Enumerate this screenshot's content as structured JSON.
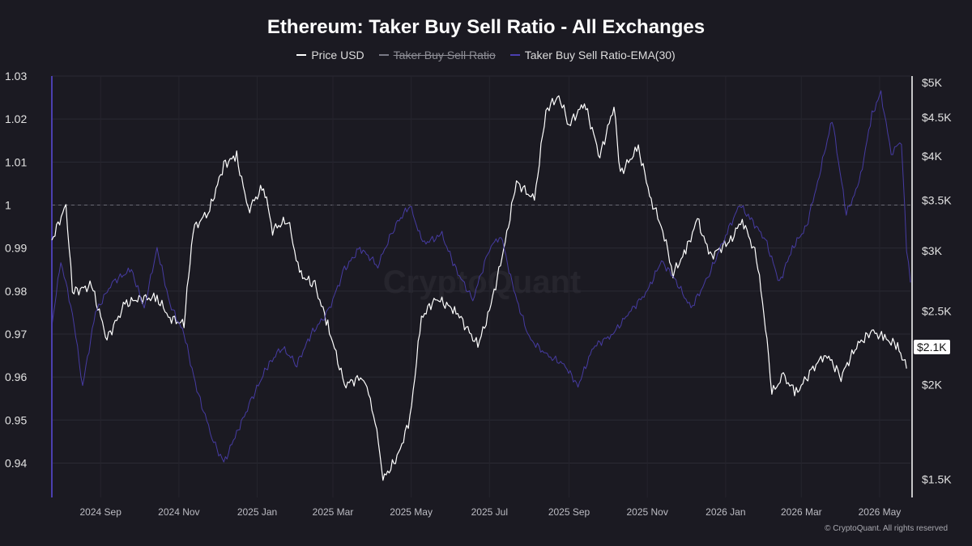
{
  "chart_data": {
    "type": "line",
    "title": "Ethereum: Taker Buy Sell Ratio - All Exchanges",
    "watermark": "CryptoQuant",
    "copyright": "© CryptoQuant. All rights reserved",
    "legend": [
      {
        "label": "Price USD",
        "color": "#ffffff",
        "hidden": false
      },
      {
        "label": "Taker Buy Sell Ratio",
        "color": "#7a7a86",
        "hidden": true
      },
      {
        "label": "Taker Buy Sell Ratio-EMA(30)",
        "color": "#4b3fb0",
        "hidden": false
      }
    ],
    "x_ticks": [
      "2024 Sep",
      "2024 Nov",
      "2025 Jan",
      "2025 Mar",
      "2025 May",
      "2025 Jul",
      "2025 Sep",
      "2025 Nov",
      "2026 Jan",
      "2026 Mar",
      "2026 May"
    ],
    "x_range": [
      "2024-07-25",
      "2026-05-25"
    ],
    "left_axis": {
      "ticks": [
        "1.03",
        "1.02",
        "1.01",
        "1",
        "0.99",
        "0.98",
        "0.97",
        "0.96",
        "0.95",
        "0.94"
      ],
      "ylim": [
        0.932,
        1.03
      ],
      "reference_line": 1.0
    },
    "right_axis": {
      "scale": "log",
      "ticks": [
        {
          "label": "$5K",
          "value": 5000
        },
        {
          "label": "$4.5K",
          "value": 4500
        },
        {
          "label": "$4K",
          "value": 4000
        },
        {
          "label": "$3.5K",
          "value": 3500
        },
        {
          "label": "$3K",
          "value": 3000
        },
        {
          "label": "$2.5K",
          "value": 2500
        },
        {
          "label": "$2K",
          "value": 2000
        },
        {
          "label": "$1.5K",
          "value": 1500
        }
      ],
      "ylim": [
        1420,
        5100
      ],
      "current_price_label": "$2.1K"
    },
    "series": [
      {
        "name": "Price USD",
        "axis": "right",
        "color": "#ffffff",
        "points": [
          [
            "2024-07-25",
            3100
          ],
          [
            "2024-08-05",
            3450
          ],
          [
            "2024-08-10",
            2650
          ],
          [
            "2024-08-25",
            2700
          ],
          [
            "2024-09-06",
            2300
          ],
          [
            "2024-09-20",
            2550
          ],
          [
            "2024-10-01",
            2600
          ],
          [
            "2024-10-15",
            2600
          ],
          [
            "2024-10-25",
            2450
          ],
          [
            "2024-11-05",
            2400
          ],
          [
            "2024-11-12",
            3200
          ],
          [
            "2024-11-25",
            3400
          ],
          [
            "2024-12-06",
            3900
          ],
          [
            "2024-12-16",
            4000
          ],
          [
            "2024-12-25",
            3400
          ],
          [
            "2025-01-06",
            3650
          ],
          [
            "2025-01-13",
            3200
          ],
          [
            "2025-01-25",
            3300
          ],
          [
            "2025-02-03",
            2800
          ],
          [
            "2025-02-15",
            2700
          ],
          [
            "2025-02-25",
            2400
          ],
          [
            "2025-03-10",
            2000
          ],
          [
            "2025-03-25",
            2050
          ],
          [
            "2025-04-03",
            1800
          ],
          [
            "2025-04-09",
            1500
          ],
          [
            "2025-04-20",
            1600
          ],
          [
            "2025-04-30",
            1800
          ],
          [
            "2025-05-09",
            2450
          ],
          [
            "2025-05-20",
            2600
          ],
          [
            "2025-06-05",
            2500
          ],
          [
            "2025-06-22",
            2250
          ],
          [
            "2025-07-01",
            2500
          ],
          [
            "2025-07-12",
            3000
          ],
          [
            "2025-07-22",
            3700
          ],
          [
            "2025-08-05",
            3500
          ],
          [
            "2025-08-14",
            4600
          ],
          [
            "2025-08-24",
            4800
          ],
          [
            "2025-09-01",
            4400
          ],
          [
            "2025-09-13",
            4700
          ],
          [
            "2025-09-25",
            4000
          ],
          [
            "2025-10-06",
            4650
          ],
          [
            "2025-10-11",
            3800
          ],
          [
            "2025-10-25",
            4100
          ],
          [
            "2025-11-04",
            3500
          ],
          [
            "2025-11-13",
            3200
          ],
          [
            "2025-11-21",
            2800
          ],
          [
            "2025-12-01",
            3000
          ],
          [
            "2025-12-10",
            3300
          ],
          [
            "2025-12-20",
            2950
          ],
          [
            "2026-01-05",
            3100
          ],
          [
            "2026-01-14",
            3300
          ],
          [
            "2026-01-25",
            2950
          ],
          [
            "2026-02-01",
            2400
          ],
          [
            "2026-02-06",
            1950
          ],
          [
            "2026-02-15",
            2050
          ],
          [
            "2026-02-25",
            1950
          ],
          [
            "2026-03-10",
            2100
          ],
          [
            "2026-03-20",
            2200
          ],
          [
            "2026-04-01",
            2050
          ],
          [
            "2026-04-13",
            2250
          ],
          [
            "2026-04-25",
            2350
          ],
          [
            "2026-05-05",
            2300
          ],
          [
            "2026-05-15",
            2250
          ],
          [
            "2026-05-22",
            2100
          ]
        ]
      },
      {
        "name": "Taker Buy Sell Ratio-EMA(30)",
        "axis": "left",
        "color": "#4b3fb0",
        "points": [
          [
            "2024-07-25",
            0.972
          ],
          [
            "2024-08-01",
            0.987
          ],
          [
            "2024-08-10",
            0.975
          ],
          [
            "2024-08-18",
            0.958
          ],
          [
            "2024-08-28",
            0.975
          ],
          [
            "2024-09-10",
            0.982
          ],
          [
            "2024-09-25",
            0.985
          ],
          [
            "2024-10-05",
            0.976
          ],
          [
            "2024-10-15",
            0.99
          ],
          [
            "2024-10-25",
            0.977
          ],
          [
            "2024-11-05",
            0.97
          ],
          [
            "2024-11-15",
            0.957
          ],
          [
            "2024-11-28",
            0.945
          ],
          [
            "2024-12-06",
            0.94
          ],
          [
            "2024-12-16",
            0.947
          ],
          [
            "2024-12-28",
            0.955
          ],
          [
            "2025-01-08",
            0.962
          ],
          [
            "2025-01-20",
            0.967
          ],
          [
            "2025-02-01",
            0.963
          ],
          [
            "2025-02-12",
            0.97
          ],
          [
            "2025-02-25",
            0.975
          ],
          [
            "2025-03-10",
            0.985
          ],
          [
            "2025-03-22",
            0.99
          ],
          [
            "2025-04-05",
            0.986
          ],
          [
            "2025-04-18",
            0.995
          ],
          [
            "2025-04-30",
            1.0
          ],
          [
            "2025-05-10",
            0.991
          ],
          [
            "2025-05-25",
            0.993
          ],
          [
            "2025-06-05",
            0.985
          ],
          [
            "2025-06-18",
            0.978
          ],
          [
            "2025-07-01",
            0.99
          ],
          [
            "2025-07-10",
            0.993
          ],
          [
            "2025-07-20",
            0.98
          ],
          [
            "2025-08-01",
            0.969
          ],
          [
            "2025-08-15",
            0.965
          ],
          [
            "2025-08-28",
            0.963
          ],
          [
            "2025-09-08",
            0.958
          ],
          [
            "2025-09-20",
            0.967
          ],
          [
            "2025-10-05",
            0.97
          ],
          [
            "2025-10-18",
            0.975
          ],
          [
            "2025-11-01",
            0.98
          ],
          [
            "2025-11-12",
            0.987
          ],
          [
            "2025-11-22",
            0.983
          ],
          [
            "2025-12-05",
            0.976
          ],
          [
            "2025-12-18",
            0.983
          ],
          [
            "2026-01-01",
            0.993
          ],
          [
            "2026-01-12",
            1.0
          ],
          [
            "2026-01-20",
            0.997
          ],
          [
            "2026-02-01",
            0.992
          ],
          [
            "2026-02-12",
            0.982
          ],
          [
            "2026-02-22",
            0.99
          ],
          [
            "2026-03-05",
            0.995
          ],
          [
            "2026-03-15",
            1.007
          ],
          [
            "2026-03-25",
            1.02
          ],
          [
            "2026-04-05",
            0.998
          ],
          [
            "2026-04-15",
            1.005
          ],
          [
            "2026-04-25",
            1.021
          ],
          [
            "2026-05-02",
            1.026
          ],
          [
            "2026-05-10",
            1.012
          ],
          [
            "2026-05-18",
            1.015
          ],
          [
            "2026-05-22",
            0.99
          ],
          [
            "2026-05-25",
            0.982
          ]
        ]
      }
    ]
  }
}
